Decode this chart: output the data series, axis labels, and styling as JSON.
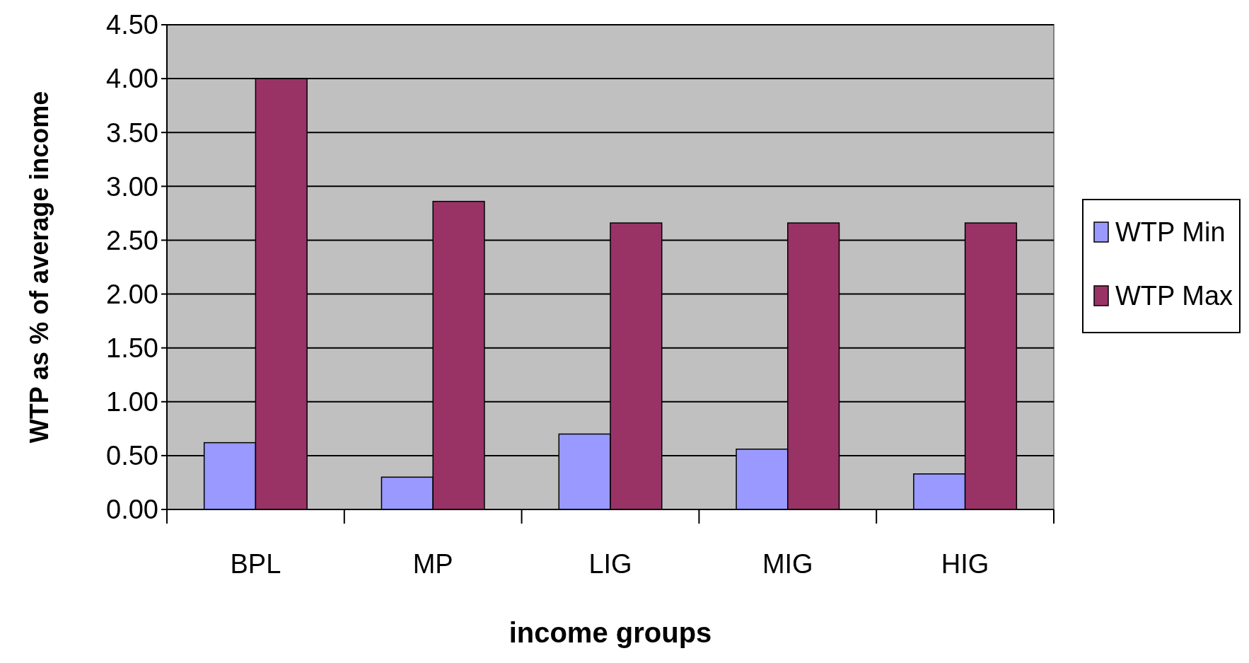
{
  "chart_data": {
    "type": "bar",
    "xlabel": "income groups",
    "ylabel": "WTP as % of average income",
    "categories": [
      "BPL",
      "MP",
      "LIG",
      "MIG",
      "HIG"
    ],
    "series": [
      {
        "name": "WTP Min",
        "color": "#9999ff",
        "values": [
          0.62,
          0.3,
          0.7,
          0.56,
          0.33
        ]
      },
      {
        "name": "WTP Max",
        "color": "#993366",
        "values": [
          4.0,
          2.86,
          2.66,
          2.66,
          2.66
        ]
      }
    ],
    "ylim": [
      0,
      4.5
    ],
    "yticks": [
      {
        "value": 0,
        "label": "0.00"
      },
      {
        "value": 0.5,
        "label": "0.50"
      },
      {
        "value": 1,
        "label": "1.00"
      },
      {
        "value": 1.5,
        "label": "1.50"
      },
      {
        "value": 2,
        "label": "2.00"
      },
      {
        "value": 2.5,
        "label": "2.50"
      },
      {
        "value": 3,
        "label": "3.00"
      },
      {
        "value": 3.5,
        "label": "3.50"
      },
      {
        "value": 4,
        "label": "4.00"
      },
      {
        "value": 4.5,
        "label": "4.50"
      }
    ],
    "grid": "y",
    "legend": "right"
  }
}
